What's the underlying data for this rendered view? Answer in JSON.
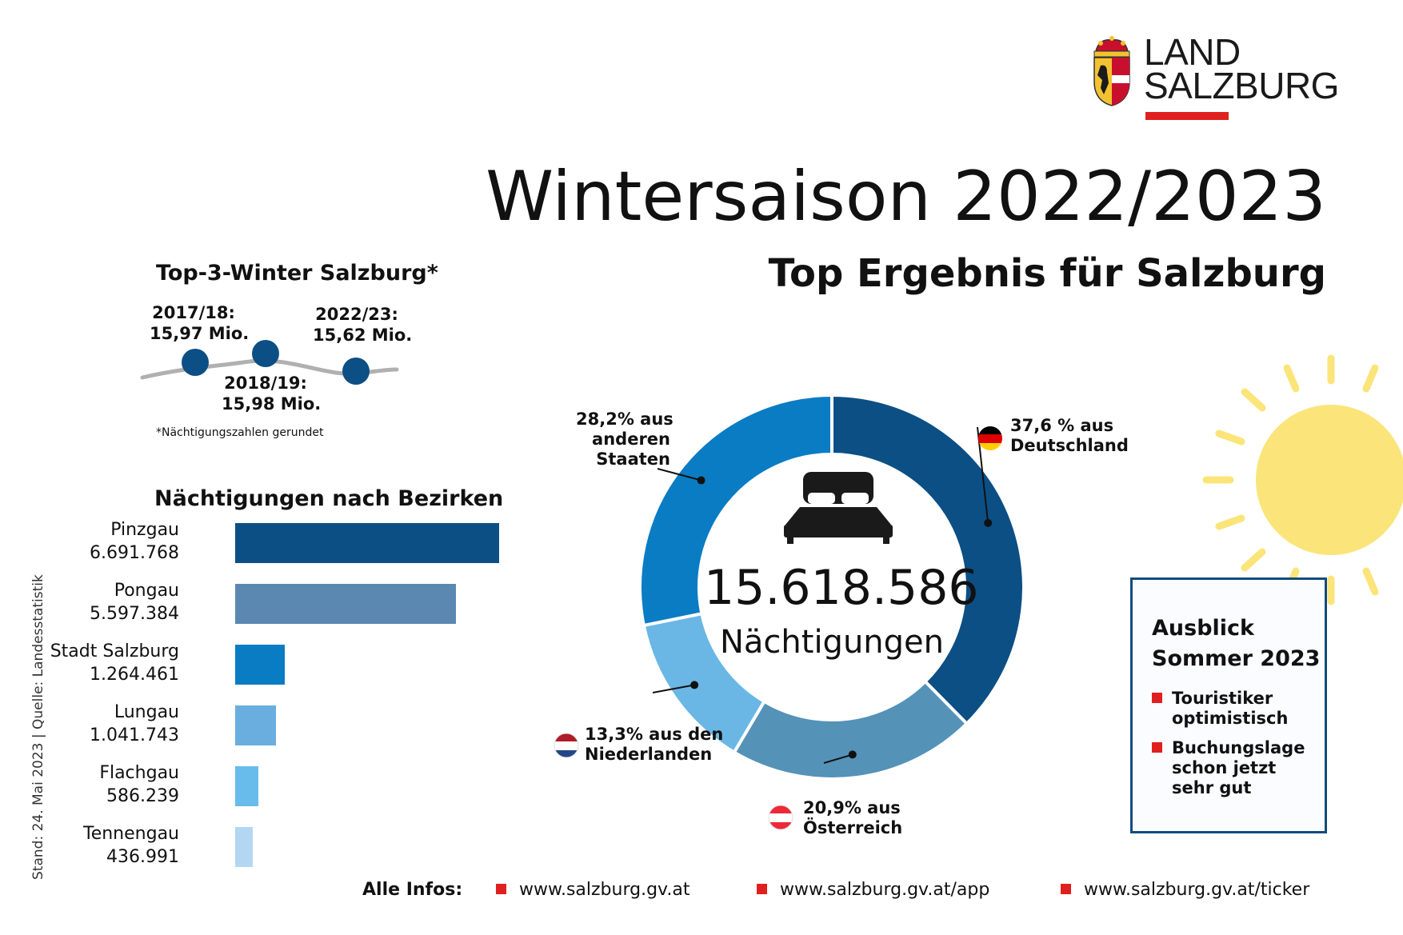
{
  "logo": {
    "line1": "LAND",
    "line2": "SALZBURG",
    "accent": "#e0201e",
    "icon": "coat-of-arms-icon"
  },
  "title": "Wintersaison 2022/2023",
  "subtitle": "Top Ergebnis für Salzburg",
  "top3": {
    "heading": "Top-3-Winter Salzburg*",
    "points": [
      {
        "season": "2017/18:",
        "value_label": "15,97 Mio.",
        "value": 15.97
      },
      {
        "season": "2018/19:",
        "value_label": "15,98 Mio.",
        "value": 15.98
      },
      {
        "season": "2022/23:",
        "value_label": "15,62 Mio.",
        "value": 15.62
      }
    ],
    "note": "*Nächtigungszahlen gerundet"
  },
  "chart_data": [
    {
      "type": "bar",
      "orientation": "horizontal",
      "title": "Nächtigungen nach Bezirken",
      "categories": [
        "Pinzgau",
        "Pongau",
        "Stadt Salzburg",
        "Lungau",
        "Flachgau",
        "Tennengau"
      ],
      "value_labels": [
        "6.691.768",
        "5.597.384",
        "1.264.461",
        "1.041.743",
        "586.239",
        "436.991"
      ],
      "values": [
        6691768,
        5597384,
        1264461,
        1041743,
        586239,
        436991
      ],
      "colors": [
        "#0b4f85",
        "#5a88b1",
        "#0a7cc4",
        "#6aaedf",
        "#67bcec",
        "#b3d6f3"
      ],
      "grid": false
    },
    {
      "type": "pie",
      "style": "donut",
      "center_number": "15.618.586",
      "center_label": "Nächtigungen",
      "slices": [
        {
          "label_line1": "37,6 % aus",
          "label_line2": "Deutschland",
          "label_line3": "",
          "value": 37.6,
          "color": "#0b4f85",
          "flag": "germany-flag-icon"
        },
        {
          "label_line1": "20,9% aus",
          "label_line2": "Österreich",
          "label_line3": "",
          "value": 20.9,
          "color": "#5592b7",
          "flag": "austria-flag-icon"
        },
        {
          "label_line1": "13,3% aus den",
          "label_line2": "Niederlanden",
          "label_line3": "",
          "value": 13.3,
          "color": "#6ab7e6",
          "flag": "netherlands-flag-icon"
        },
        {
          "label_line1": "28,2% aus",
          "label_line2": "anderen",
          "label_line3": "Staaten",
          "value": 28.2,
          "color": "#0a7cc4",
          "flag": ""
        }
      ]
    }
  ],
  "source_note": "Stand: 24. Mai 2023 | Quelle: Landesstatistik",
  "outlook": {
    "title_line1": "Ausblick",
    "title_line2": "Sommer 2023",
    "items": [
      {
        "line1": "Touristiker",
        "line2": "optimistisch",
        "line3": ""
      },
      {
        "line1": "Buchungslage",
        "line2": "schon jetzt",
        "line3": "sehr gut"
      }
    ]
  },
  "footer": {
    "label": "Alle Infos:",
    "links": [
      "www.salzburg.gv.at",
      "www.salzburg.gv.at/app",
      "www.salzburg.gv.at/ticker"
    ]
  },
  "decor": {
    "sun_color": "#fbe57a",
    "sun_icon": "sun-icon",
    "bed_icon": "bed-icon"
  }
}
